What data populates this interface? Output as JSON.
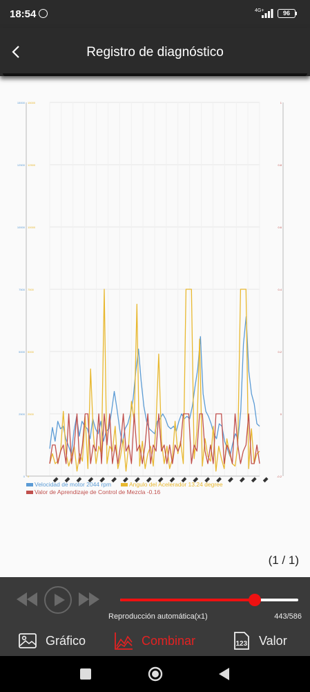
{
  "status_bar": {
    "time": "18:54",
    "network_label": "4G+",
    "battery": "96",
    "icons": [
      "whatsapp-icon",
      "signal-icon",
      "battery-icon"
    ]
  },
  "app_bar": {
    "title": "Registro de diagnóstico",
    "back_icon": "back-arrow-icon"
  },
  "page_indicator": "(1 / 1)",
  "chart_data": {
    "type": "line",
    "title": "",
    "xlabel": "",
    "ylabel": "",
    "grid": true,
    "legend_position": "bottom-left",
    "left_axis": {
      "ticks": [
        "0",
        "2500",
        "5000",
        "7500",
        "10000",
        "12500",
        "15000"
      ],
      "ylim": [
        0,
        15000
      ],
      "colors": [
        "#5b9bd5",
        "#e8b830"
      ]
    },
    "right_axis": {
      "ticks": [
        "-0.2",
        "0",
        "0.2",
        "0.4",
        "0.6",
        "0.8",
        "1"
      ],
      "ylim": [
        -0.2,
        1.0
      ],
      "color": "#c0504d"
    },
    "x_tick_count": 18,
    "series": [
      {
        "name": "Velocidad de motor 2044 rpm",
        "color": "#5b9bd5",
        "axis": "left",
        "values": [
          1100,
          1950,
          1400,
          2200,
          1900,
          2000,
          1500,
          1200,
          900,
          1800,
          2400,
          1600,
          2200,
          2000,
          1900,
          1500,
          2300,
          1900,
          1700,
          2200,
          1400,
          1800,
          1900,
          2600,
          3400,
          2700,
          1900,
          1300,
          1900,
          2100,
          2500,
          3100,
          4200,
          5100,
          3800,
          2800,
          2200,
          1900,
          1800,
          1700,
          2200,
          2300,
          2500,
          2300,
          2000,
          1900,
          2000,
          1800,
          2200,
          2500,
          2300,
          2400,
          2300,
          2800,
          3600,
          4300,
          5600,
          3300,
          2600,
          2400,
          2100,
          1700,
          1500,
          2100,
          2000,
          1400,
          1100,
          800,
          1300,
          1700,
          1500,
          2600,
          5300,
          6400,
          4200,
          3300,
          2900,
          2100,
          2000
        ]
      },
      {
        "name": "Angulo del Acelerador 13.24 degree",
        "color": "#e8b830",
        "axis": "left",
        "values": [
          500,
          900,
          500,
          600,
          1000,
          2600,
          900,
          400,
          800,
          1200,
          200,
          900,
          600,
          2400,
          300,
          4300,
          1700,
          500,
          1200,
          900,
          7500,
          500,
          1200,
          1000,
          2000,
          300,
          800,
          1500,
          200,
          1300,
          3000,
          2200,
          6900,
          400,
          1400,
          300,
          900,
          1200,
          400,
          2100,
          4900,
          1400,
          500,
          1200,
          300,
          700,
          2200,
          900,
          1400,
          500,
          7500,
          7500,
          7500,
          700,
          1800,
          5500,
          400,
          1500,
          800,
          600,
          2000,
          200,
          1200,
          700,
          300,
          1500,
          900,
          500,
          400,
          1200,
          7500,
          7500,
          7500,
          300,
          1900,
          500,
          900,
          1000
        ]
      },
      {
        "name": "Valor de Aprendizaje de Control de Mezcla -0.16",
        "color": "#c0504d",
        "axis": "right",
        "values": [
          -0.16,
          -0.1,
          -0.1,
          -0.16,
          -0.12,
          -0.1,
          -0.16,
          0.0,
          -0.16,
          -0.1,
          0.0,
          -0.16,
          -0.1,
          0.0,
          0.0,
          -0.16,
          -0.1,
          -0.12,
          0.0,
          -0.16,
          0.0,
          -0.1,
          0.0,
          -0.16,
          -0.1,
          -0.16,
          -0.1,
          0.0,
          -0.12,
          -0.1,
          -0.16,
          0.0,
          -0.12,
          -0.1,
          -0.16,
          -0.1,
          0.0,
          -0.16,
          -0.1,
          -0.12,
          0.0,
          -0.12,
          -0.1,
          -0.16,
          -0.1,
          -0.16,
          -0.1,
          -0.12,
          -0.1,
          0.0,
          0.0,
          0.0,
          -0.16,
          -0.1,
          -0.12,
          0.0,
          0.0,
          -0.12,
          -0.16,
          -0.1,
          -0.16,
          0.0,
          0.0,
          0.0,
          -0.16,
          -0.1,
          -0.12,
          -0.16,
          0.0,
          -0.1,
          -0.16,
          -0.12,
          -0.1,
          0.0,
          -0.16,
          -0.16,
          -0.1,
          -0.16
        ]
      }
    ]
  },
  "player": {
    "auto_play_label": "Reproducción automática(x1)",
    "position_label": "443/586",
    "progress": 0.757,
    "controls": [
      "rewind-icon",
      "play-icon",
      "fast-forward-icon"
    ]
  },
  "tabs": [
    {
      "label": "Gráfico",
      "icon": "image-icon",
      "active": false
    },
    {
      "label": "Combinar",
      "icon": "line-chart-icon",
      "active": true
    },
    {
      "label": "Valor",
      "icon": "number-123-icon",
      "active": false
    }
  ],
  "nav_bar": {
    "icons": [
      "recent-apps-icon",
      "home-icon",
      "back-icon"
    ]
  }
}
